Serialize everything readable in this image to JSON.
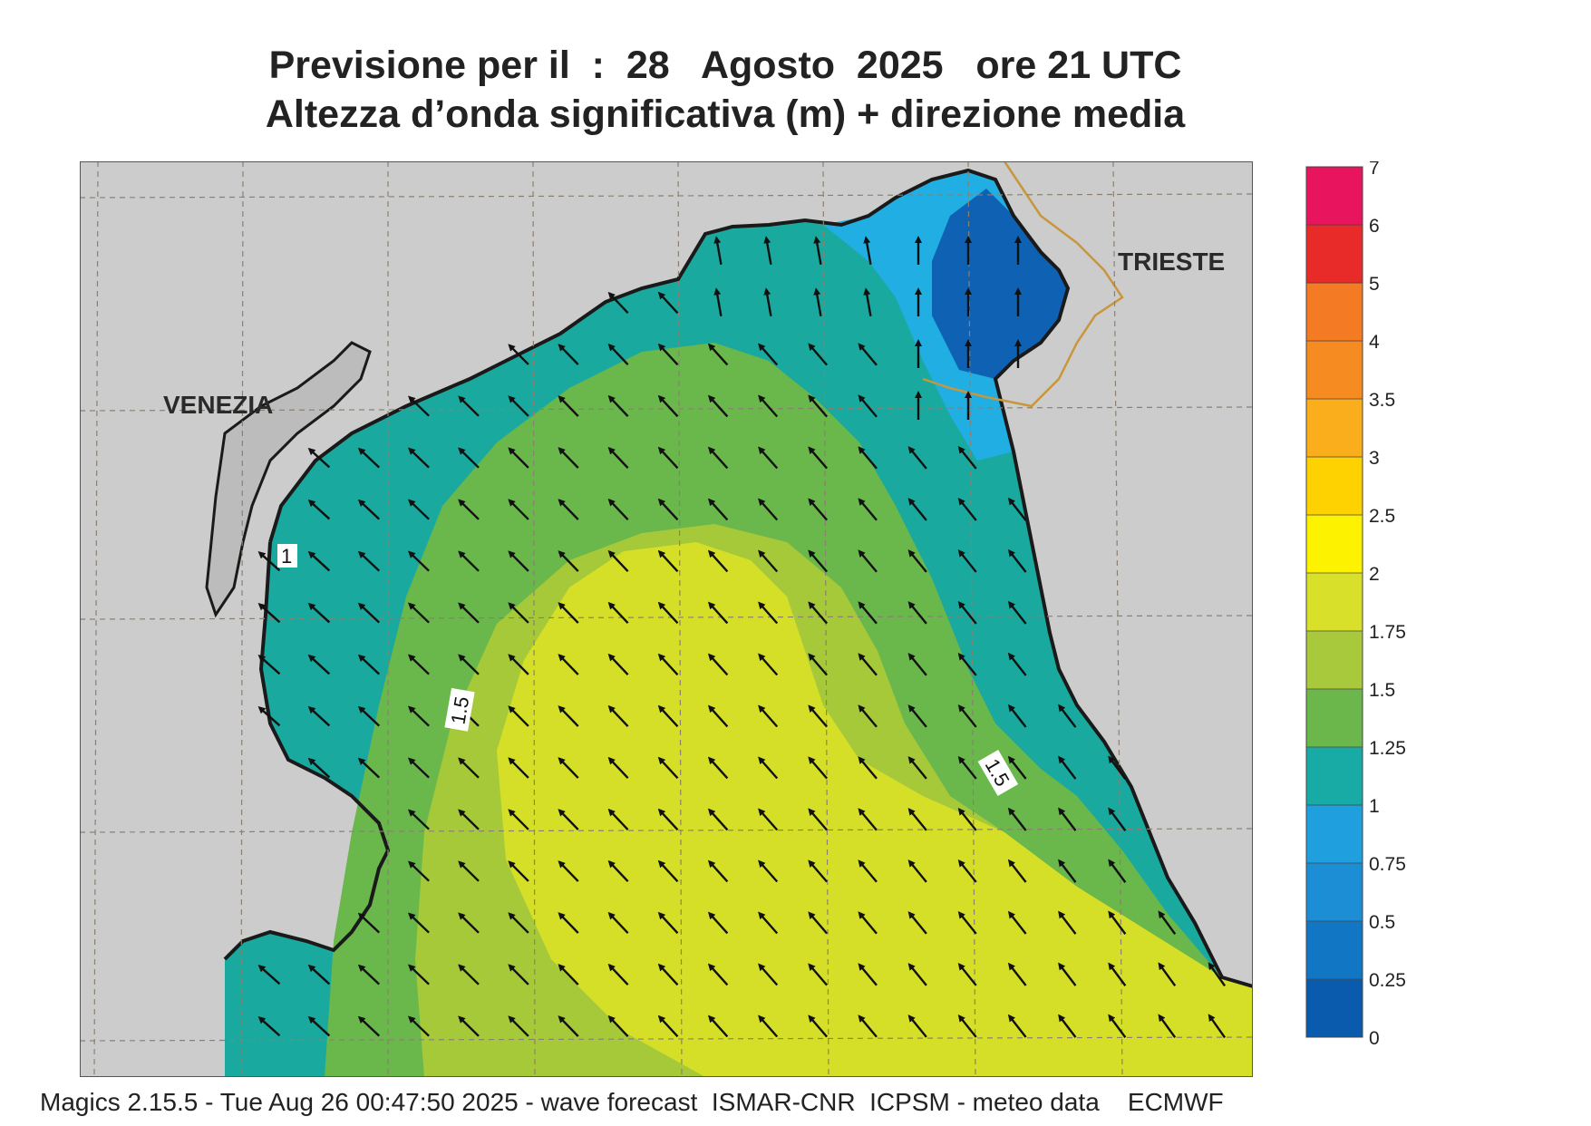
{
  "header": {
    "title_line1": "Previsione per il  :  28   Agosto  2025   ore 21 UTC",
    "title_line2": "Altezza d’onda significativa (m) + direzione media"
  },
  "map": {
    "places": {
      "venezia": "VENEZIA",
      "trieste": "TRIESTE"
    },
    "contour_labels": [
      "1",
      "1.5",
      "1.5"
    ],
    "colors": {
      "land": "#cccccc",
      "coast": "#1a1a1a",
      "border": "#c8963c",
      "grid": "#8a8070",
      "c0": "#0f62b3",
      "c1": "#2a8ad8",
      "c2": "#21aee3",
      "c3": "#1aa99e",
      "c4": "#6ab74c",
      "c5": "#a6c93a",
      "c6": "#d5df28"
    }
  },
  "legend": {
    "ticks": [
      "7",
      "6",
      "5",
      "4",
      "3.5",
      "3",
      "2.5",
      "2",
      "1.75",
      "1.5",
      "1.25",
      "1",
      "0.75",
      "0.5",
      "0.25",
      "0"
    ],
    "colors": [
      "#0a5bad",
      "#1176c4",
      "#1c8ed6",
      "#209fde",
      "#18aaa5",
      "#6cb74b",
      "#a7c93b",
      "#d8e02a",
      "#fdf200",
      "#fdd200",
      "#fbae1b",
      "#f68b22",
      "#f47a24",
      "#e82a29",
      "#e8155e"
    ]
  },
  "footer": {
    "text": "Magics 2.15.5 - Tue Aug 26 00:47:50 2025 - wave forecast  ISMAR-CNR  ICPSM - meteo data    ECMWF"
  }
}
